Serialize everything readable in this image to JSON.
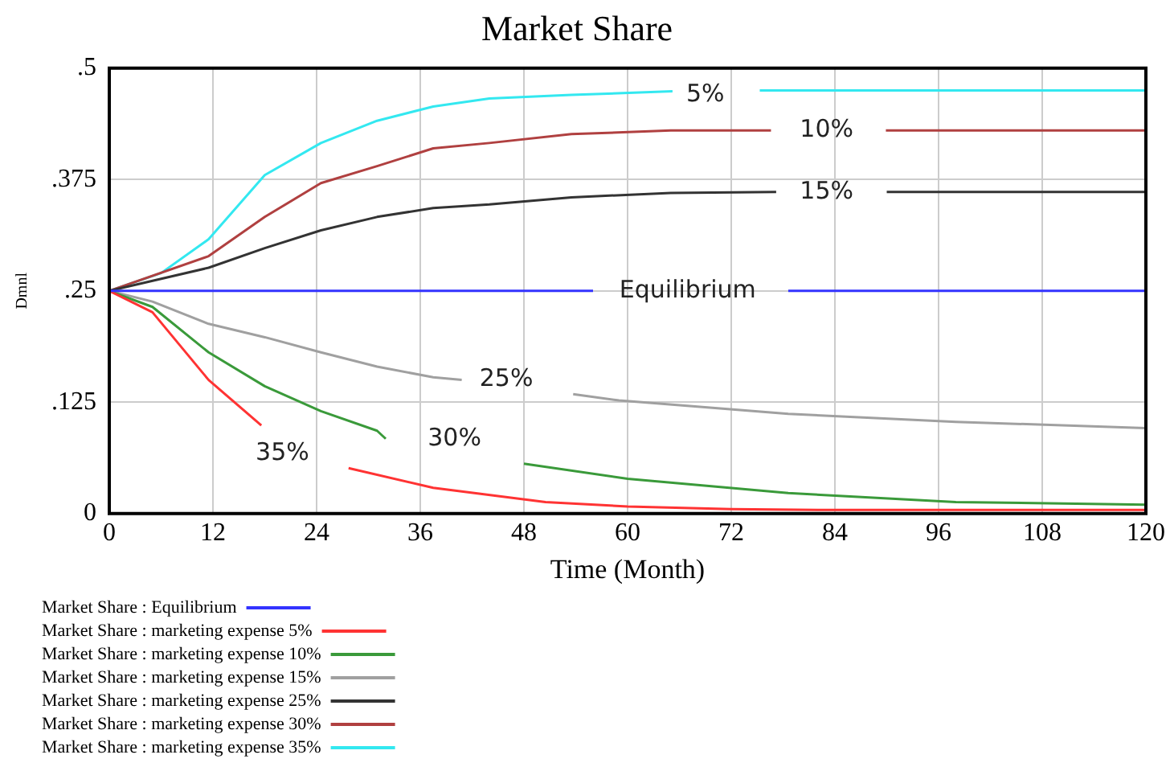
{
  "chart_data": {
    "type": "line",
    "title": "Market Share",
    "xlabel": "Time (Month)",
    "ylabel": "Dmnl",
    "xlim": [
      0,
      120
    ],
    "xticks": [
      0,
      12,
      24,
      36,
      48,
      60,
      72,
      84,
      96,
      108,
      120
    ],
    "ylim": [
      0,
      0.5
    ],
    "yticks": [
      {
        "value": 0,
        "label": "0"
      },
      {
        "value": 0.125,
        "label": ".125"
      },
      {
        "value": 0.25,
        "label": ".25"
      },
      {
        "value": 0.375,
        "label": ".375"
      },
      {
        "value": 0.5,
        "label": ".5"
      }
    ],
    "grid": true,
    "legend": "bottom",
    "marker": "none",
    "line_style": "solid",
    "series": [
      {
        "name": "Market Share : Equilibrium",
        "color": "#3333ff",
        "x": [
          0,
          56,
          65,
          78.6,
          120
        ],
        "values": [
          0.25,
          0.25,
          null,
          0.25,
          0.25
        ]
      },
      {
        "name": "Market Share : marketing expense 5%",
        "color": "#ff3333",
        "x": [
          0,
          5,
          11.5,
          17.6,
          22,
          27.7,
          37.5,
          50.5,
          60,
          72,
          84,
          120
        ],
        "values": [
          0.25,
          0.226,
          0.15,
          0.099,
          null,
          0.051,
          0.029,
          0.013,
          0.008,
          0.005,
          0.004,
          0.004
        ]
      },
      {
        "name": "Market Share : marketing expense 10%",
        "color": "#3a9a3a",
        "x": [
          0,
          5,
          11.5,
          18,
          24.5,
          31,
          32,
          40,
          48,
          60,
          78.6,
          98,
          120
        ],
        "values": [
          0.25,
          0.232,
          0.181,
          0.143,
          0.115,
          0.093,
          0.084,
          null,
          0.056,
          0.039,
          0.023,
          0.013,
          0.01
        ]
      },
      {
        "name": "Market Share : marketing expense 15%",
        "color": "#a0a0a0",
        "x": [
          0,
          5,
          11.5,
          18,
          24.5,
          31,
          37.5,
          40.8,
          47,
          53.7,
          59,
          78.6,
          98,
          120
        ],
        "values": [
          0.25,
          0.238,
          0.213,
          0.198,
          0.181,
          0.165,
          0.153,
          0.15,
          null,
          0.134,
          0.127,
          0.112,
          0.103,
          0.096
        ]
      },
      {
        "name": "Market Share : marketing expense 25%",
        "color": "#333333",
        "x": [
          0,
          11.5,
          18,
          24.5,
          31,
          37.5,
          44,
          53.5,
          65,
          77.2,
          83,
          90,
          120
        ],
        "values": [
          0.25,
          0.276,
          0.298,
          0.318,
          0.333,
          0.343,
          0.347,
          0.355,
          0.36,
          0.361,
          null,
          0.361,
          0.361
        ]
      },
      {
        "name": "Market Share : marketing expense 30%",
        "color": "#b04040",
        "x": [
          0,
          11.5,
          18,
          24.5,
          31,
          37.5,
          44,
          53.5,
          65,
          76.6,
          83,
          89.9,
          120
        ],
        "values": [
          0.25,
          0.289,
          0.333,
          0.371,
          0.39,
          0.41,
          0.416,
          0.426,
          0.43,
          0.43,
          null,
          0.43,
          0.43
        ]
      },
      {
        "name": "Market Share : marketing expense 35%",
        "color": "#33e8f0",
        "x": [
          0,
          6,
          11.5,
          18,
          24.5,
          31,
          37.5,
          44,
          53.5,
          65.2,
          70,
          75.3,
          120
        ],
        "values": [
          0.25,
          0.27,
          0.308,
          0.38,
          0.416,
          0.441,
          0.457,
          0.466,
          0.47,
          0.474,
          null,
          0.475,
          0.475
        ]
      }
    ],
    "annotations": [
      "5%",
      "10%",
      "15%",
      "Equilibrium",
      "25%",
      "30%",
      "35%"
    ]
  }
}
